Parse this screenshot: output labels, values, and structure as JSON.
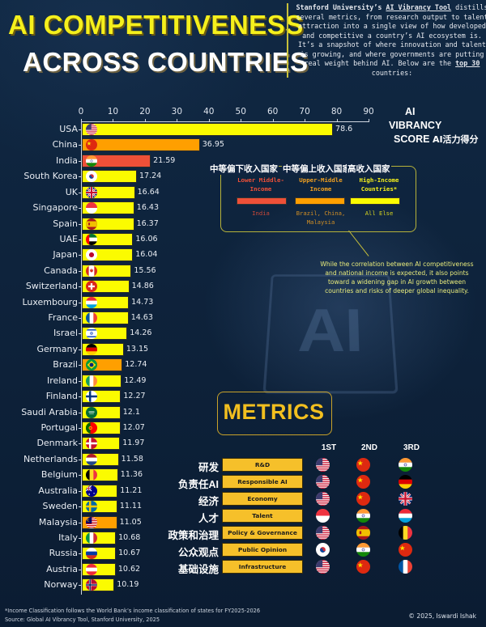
{
  "header": {
    "title_line1": "AI COMPETITIVENESS",
    "title_line2": "ACROSS COUNTRIES",
    "intro": {
      "lead_bold": "Stanford University’s ",
      "tool_link": "AI Vibrancy Tool",
      "body1": " distills several metrics, from research output to talent attraction into a single view of how developed and competitive a country’s AI ecosystem is. It’s a snapshot of where innovation and talent is growing, and where governments are putting real weight behind AI. Below are the ",
      "top_link": "top 30",
      "body2": " countries:"
    }
  },
  "score_label": {
    "line1": "AI",
    "line2": "VIBRANCY",
    "line3": "SCORE",
    "cn": "AI活力得分"
  },
  "colors": {
    "high_income": "#fbfb00",
    "upper_middle": "#ff9f00",
    "lower_middle": "#ee5038",
    "accent": "#f6c02a",
    "background": "#0f2440"
  },
  "legend": {
    "items": [
      {
        "cn": "中等偏下收入国家",
        "en": "Lower Middle-Income",
        "examples": "India",
        "color": "#ee5038",
        "text_color": "#ee5038"
      },
      {
        "cn": "中等偏上收入国家",
        "en": "Upper-Middle Income",
        "examples": "Brazil, China, Malaysia",
        "color": "#ff9f00",
        "text_color": "#f1a020"
      },
      {
        "cn": "高收入国家",
        "en": "High-Income Countries*",
        "examples": "All Else",
        "color": "#fbfb00",
        "text_color": "#f5f01c"
      }
    ],
    "note": "While the correlation between AI competitiveness and national income is expected, it also points toward a widening gap in AI growth between countries and risks of deeper global inequality."
  },
  "chart_data": {
    "type": "bar",
    "orientation": "horizontal",
    "title": "AI Competitiveness Across Countries",
    "xlabel": "AI Vibrancy Score (AI活力得分)",
    "ylabel": "",
    "xlim": [
      0,
      90
    ],
    "xticks": [
      0,
      10,
      20,
      30,
      40,
      50,
      60,
      70,
      80,
      90
    ],
    "grid": false,
    "legend_position": "top-right box",
    "categories": [
      "USA",
      "China",
      "India",
      "South Korea",
      "UK",
      "Singapore",
      "Spain",
      "UAE",
      "Japan",
      "Canada",
      "Switzerland",
      "Luxembourg",
      "France",
      "Israel",
      "Germany",
      "Brazil",
      "Ireland",
      "Finland",
      "Saudi Arabia",
      "Portugal",
      "Denmark",
      "Netherlands",
      "Belgium",
      "Australia",
      "Sweden",
      "Malaysia",
      "Italy",
      "Russia",
      "Austria",
      "Norway"
    ],
    "values": [
      78.6,
      36.95,
      21.59,
      17.24,
      16.64,
      16.43,
      16.37,
      16.06,
      16.04,
      15.56,
      14.86,
      14.73,
      14.63,
      14.26,
      13.15,
      12.74,
      12.49,
      12.27,
      12.1,
      12.07,
      11.97,
      11.58,
      11.36,
      11.21,
      11.11,
      11.05,
      10.68,
      10.67,
      10.62,
      10.19
    ],
    "labels": [
      "78.6",
      "36.95",
      "21.59",
      "17.24",
      "16.64",
      "16.43",
      "16.37",
      "16.06",
      "16.04",
      "15.56",
      "14.86",
      "14.73",
      "14.63",
      "14.26",
      "13.15",
      "12.74",
      "12.49",
      "12.27",
      "12.1",
      "12.07",
      "11.97",
      "11.58",
      "11.36",
      "11.21",
      "11.11",
      "11.05",
      "10.68",
      "10.67",
      "10.62",
      "10.19"
    ],
    "income_group": [
      "high",
      "upper_middle",
      "lower_middle",
      "high",
      "high",
      "high",
      "high",
      "high",
      "high",
      "high",
      "high",
      "high",
      "high",
      "high",
      "high",
      "upper_middle",
      "high",
      "high",
      "high",
      "high",
      "high",
      "high",
      "high",
      "high",
      "high",
      "upper_middle",
      "high",
      "high",
      "high",
      "high"
    ],
    "flags": [
      "us",
      "cn",
      "in",
      "kr",
      "gb",
      "sg",
      "es",
      "ae",
      "jp",
      "ca",
      "ch",
      "lu",
      "fr",
      "il",
      "de",
      "br",
      "ie",
      "fi",
      "sa",
      "pt",
      "dk",
      "nl",
      "be",
      "au",
      "se",
      "my",
      "it",
      "ru",
      "at",
      "no"
    ]
  },
  "metrics": {
    "title": "METRICS",
    "rank_headers": [
      "1ST",
      "2ND",
      "3RD"
    ],
    "rows": [
      {
        "cn": "研发",
        "en": "R&D",
        "ranks": [
          "us",
          "cn",
          "in"
        ]
      },
      {
        "cn": "负责任AI",
        "en": "Responsible AI",
        "ranks": [
          "us",
          "cn",
          "de"
        ]
      },
      {
        "cn": "经济",
        "en": "Economy",
        "ranks": [
          "us",
          "cn",
          "gb"
        ]
      },
      {
        "cn": "人才",
        "en": "Talent",
        "ranks": [
          "sg",
          "in",
          "lu"
        ]
      },
      {
        "cn": "政策和治理",
        "en": "Policy & Governance",
        "ranks": [
          "us",
          "es",
          "be"
        ]
      },
      {
        "cn": "公众观点",
        "en": "Public Opinion",
        "ranks": [
          "kr",
          "in",
          "cn"
        ]
      },
      {
        "cn": "基础设施",
        "en": "Infrastructure",
        "ranks": [
          "us",
          "cn",
          "fr"
        ]
      }
    ]
  },
  "footer": {
    "note": "*Income Classification follows the World Bank’s income classification of states for FY2025-2026",
    "source": "Source: Global AI Vibrancy Tool, Stanford University, 2025",
    "credit": "© 2025, Iswardi Ishak"
  }
}
